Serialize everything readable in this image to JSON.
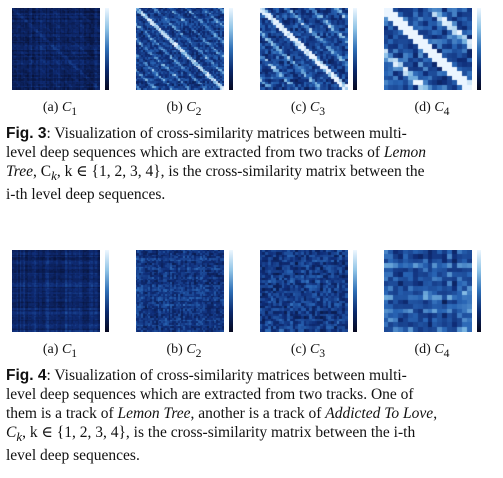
{
  "figure3": {
    "subcaptions": [
      {
        "tag": "(a)",
        "sym": "C",
        "sub": "1"
      },
      {
        "tag": "(b)",
        "sym": "C",
        "sub": "2"
      },
      {
        "tag": "(c)",
        "sym": "C",
        "sub": "3"
      },
      {
        "tag": "(d)",
        "sym": "C",
        "sub": "4"
      }
    ],
    "label": "Fig. 3",
    "caption_l1": ":  Visualization of cross-similarity matrices between multi-",
    "caption_l2": "level deep sequences which are extracted from two tracks of ",
    "caption_song": "Lemon",
    "caption_l3a": "Tree",
    "caption_l3b": ", C",
    "caption_l3c": "k",
    "caption_l3d": ", k ∈ {1, 2, 3, 4}, is the cross-similarity matrix between the",
    "caption_l4": "i-th level deep sequences."
  },
  "figure4": {
    "subcaptions": [
      {
        "tag": "(a)",
        "sym": "C",
        "sub": "1"
      },
      {
        "tag": "(b)",
        "sym": "C",
        "sub": "2"
      },
      {
        "tag": "(c)",
        "sym": "C",
        "sub": "3"
      },
      {
        "tag": "(d)",
        "sym": "C",
        "sub": "4"
      }
    ],
    "label": "Fig. 4",
    "caption_l1": ":  Visualization of cross-similarity matrices between multi-",
    "caption_l2": "level deep sequences which are extracted from two tracks.  One of",
    "caption_l3a": "them is a track of ",
    "caption_song1": "Lemon Tree",
    "caption_l3b": ", another is a track of ",
    "caption_song2": "Addicted To Love",
    "caption_l3c": ",",
    "caption_l4a": "C",
    "caption_l4b": "k",
    "caption_l4c": ", k ∈ {1, 2, 3, 4}, is the cross-similarity matrix between the i-th",
    "caption_l5": "level deep sequences."
  },
  "colors": {
    "dark": "#050a2a",
    "mid": "#1f4f9e",
    "light": "#cfe6fb"
  }
}
